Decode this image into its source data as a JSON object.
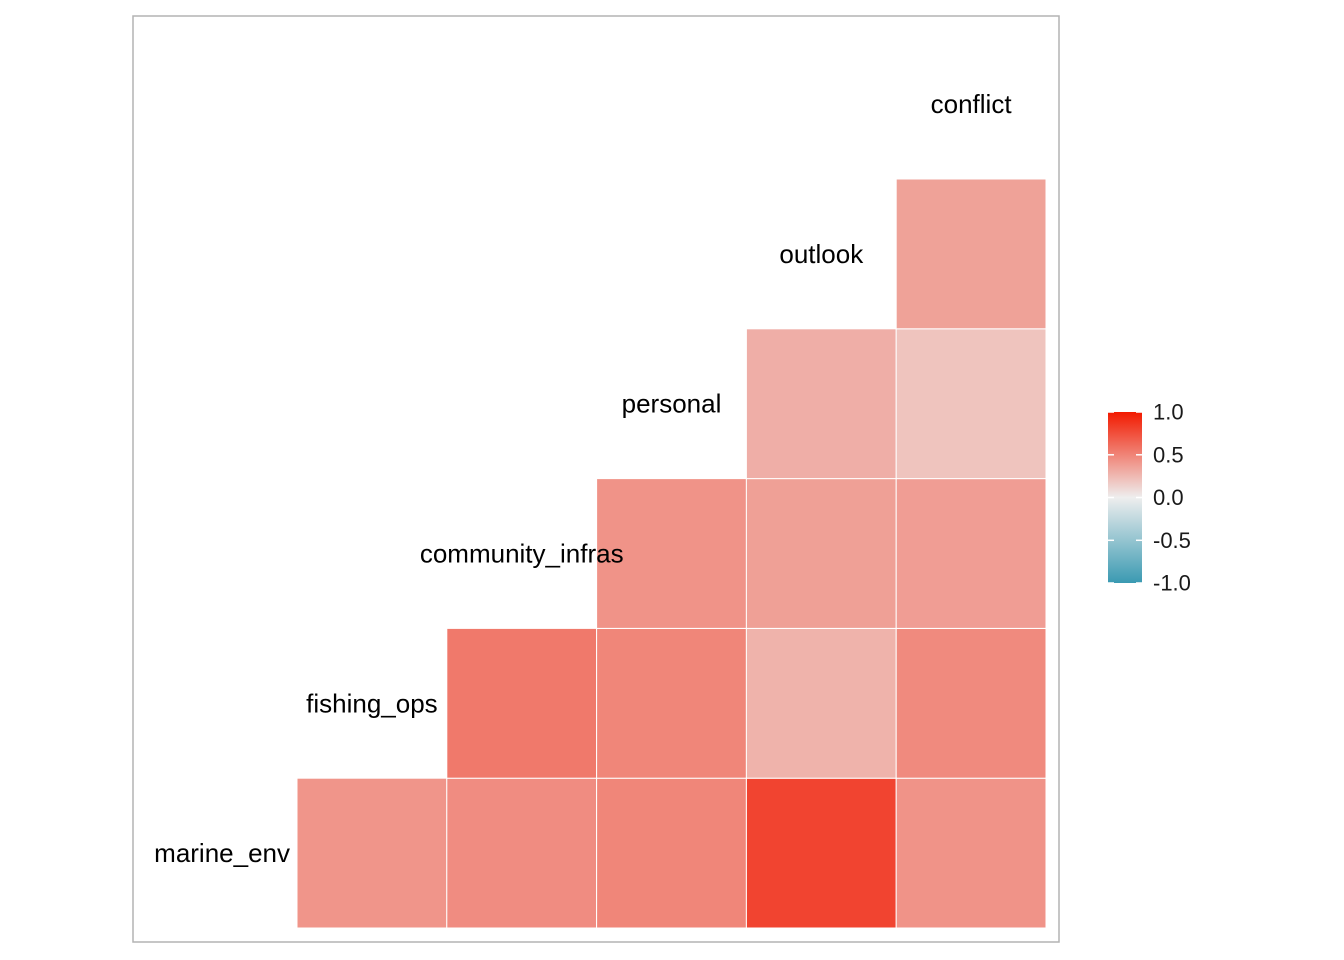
{
  "chart_data": {
    "type": "heatmap",
    "subtype": "lower-triangle correlation matrix",
    "variables": [
      "marine_env",
      "fishing_ops",
      "community_infras",
      "personal",
      "outlook",
      "conflict"
    ],
    "cells": [
      {
        "row": "marine_env",
        "col": "fishing_ops",
        "value": 0.42
      },
      {
        "row": "marine_env",
        "col": "community_infras",
        "value": 0.46
      },
      {
        "row": "marine_env",
        "col": "personal",
        "value": 0.49
      },
      {
        "row": "marine_env",
        "col": "outlook",
        "value": 0.8
      },
      {
        "row": "marine_env",
        "col": "conflict",
        "value": 0.43
      },
      {
        "row": "fishing_ops",
        "col": "community_infras",
        "value": 0.55
      },
      {
        "row": "fishing_ops",
        "col": "personal",
        "value": 0.49
      },
      {
        "row": "fishing_ops",
        "col": "outlook",
        "value": 0.28
      },
      {
        "row": "fishing_ops",
        "col": "conflict",
        "value": 0.47
      },
      {
        "row": "community_infras",
        "col": "personal",
        "value": 0.43
      },
      {
        "row": "community_infras",
        "col": "outlook",
        "value": 0.37
      },
      {
        "row": "community_infras",
        "col": "conflict",
        "value": 0.38
      },
      {
        "row": "personal",
        "col": "outlook",
        "value": 0.3
      },
      {
        "row": "personal",
        "col": "conflict",
        "value": 0.2
      },
      {
        "row": "outlook",
        "col": "conflict",
        "value": 0.36
      }
    ],
    "color_scale": {
      "low": "#3A9AB2",
      "mid": "#EEEEEE",
      "high": "#F21A00",
      "limits": [
        -1.0,
        1.0
      ],
      "breaks": [
        1.0,
        0.5,
        0.0,
        -0.5,
        -1.0
      ],
      "break_labels": [
        "1.0",
        "0.5",
        "0.0",
        "-0.5",
        "-1.0"
      ]
    },
    "legend_position": "right",
    "panel_border_color": "#B3B3B3",
    "cell_border_color": "#FFFFFF",
    "title": "",
    "xlabel": "",
    "ylabel": ""
  }
}
